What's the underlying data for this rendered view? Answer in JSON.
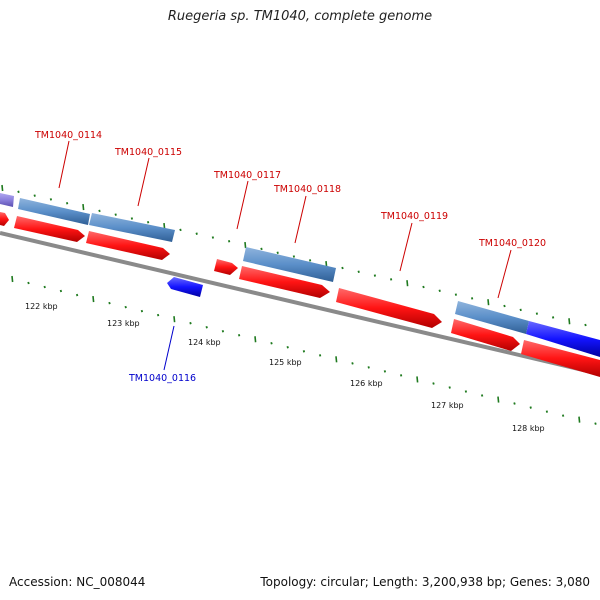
{
  "header": {
    "title": "Ruegeria sp. TM1040, complete genome"
  },
  "footer": {
    "accession": "Accession: NC_008044",
    "summary": "Topology: circular; Length: 3,200,938 bp; Genes: 3,080"
  },
  "scale": {
    "unit": "kbp",
    "labels": [
      "122 kbp",
      "123 kbp",
      "124 kbp",
      "125 kbp",
      "126 kbp",
      "127 kbp",
      "128 kbp"
    ]
  },
  "colors": {
    "backbone": "#7a7a7a",
    "tick": "#1f7a1f",
    "gene_label_plus": "#cc0000",
    "gene_label_minus": "#0000cc",
    "cds_red": "#ff1a1a",
    "gene_blue": "#5b8fc9",
    "cds_blue": "#1a1aff",
    "gene_purple": "#8a7fdc"
  },
  "genes": [
    {
      "label": "TM1040_0114",
      "strand": "+"
    },
    {
      "label": "TM1040_0115",
      "strand": "+"
    },
    {
      "label": "TM1040_0116",
      "strand": "-"
    },
    {
      "label": "TM1040_0117",
      "strand": "+"
    },
    {
      "label": "TM1040_0118",
      "strand": "+"
    },
    {
      "label": "TM1040_0119",
      "strand": "+"
    },
    {
      "label": "TM1040_0120",
      "strand": "+"
    }
  ]
}
